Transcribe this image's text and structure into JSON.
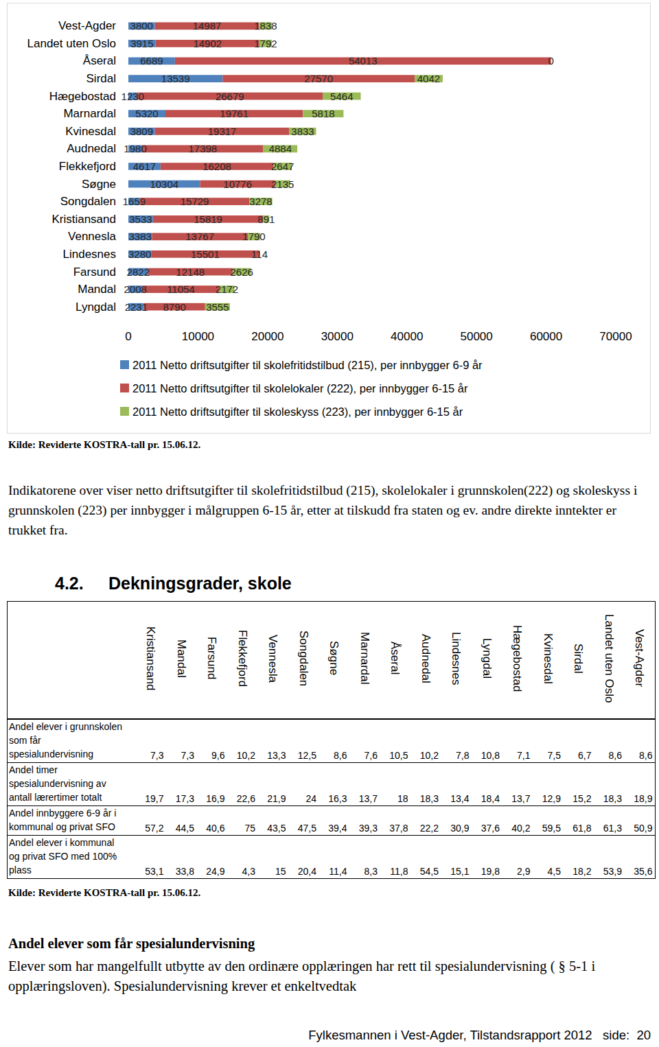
{
  "chart_data": {
    "type": "bar",
    "orientation": "horizontal",
    "stacked": true,
    "data_labels": true,
    "grid": false,
    "legend": "bottom",
    "categories": [
      "Vest-Agder",
      "Landet uten Oslo",
      "Åseral",
      "Sirdal",
      "Hægebostad",
      "Marnardal",
      "Kvinesdal",
      "Audnedal",
      "Flekkefjord",
      "Søgne",
      "Songdalen",
      "Kristiansand",
      "Vennesla",
      "Lindesnes",
      "Farsund",
      "Mandal",
      "Lyngdal"
    ],
    "series": [
      {
        "name": "2011 Netto driftsutgifter til skolefritidstilbud (215), per innbygger 6-9 år",
        "color": "#4f81bd",
        "values": [
          3800,
          3915,
          6689,
          13539,
          1230,
          5320,
          3809,
          1980,
          4617,
          10304,
          1659,
          3533,
          3383,
          3280,
          2822,
          2008,
          2231
        ]
      },
      {
        "name": "2011 Netto driftsutgifter til skolelokaler (222), per innbygger 6-15 år",
        "color": "#c0504d",
        "values": [
          14987,
          14902,
          54013,
          27570,
          26679,
          19761,
          19317,
          17398,
          16208,
          10776,
          15729,
          15819,
          13767,
          15501,
          12148,
          11054,
          8790
        ]
      },
      {
        "name": "2011 Netto driftsutgifter til skoleskyss (223), per innbygger 6-15 år",
        "color": "#9bbb59",
        "values": [
          1838,
          1792,
          0,
          4042,
          5464,
          5818,
          3833,
          4884,
          2647,
          2135,
          3278,
          891,
          1790,
          114,
          2626,
          2172,
          3555
        ]
      }
    ],
    "xlim": [
      0,
      70000
    ],
    "xticks": [
      0,
      10000,
      20000,
      30000,
      40000,
      50000,
      60000,
      70000
    ]
  },
  "chart_source": "Kilde: Reviderte KOSTRA-tall pr. 15.06.12.",
  "intro_paragraph": "Indikatorene over viser netto driftsutgifter til skolefritidstilbud (215), skolelokaler i grunnskolen(222) og skoleskyss i grunnskolen (223) per innbygger i målgruppen 6-15 år, etter at tilskudd fra staten og ev. andre direkte inntekter er trukket fra.",
  "section_number": "4.2.",
  "section_title": "Dekningsgrader, skole",
  "table": {
    "columns": [
      "Kristiansand",
      "Mandal",
      "Farsund",
      "Flekkefjord",
      "Vennesla",
      "Songdalen",
      "Søgne",
      "Marnardal",
      "Åseral",
      "Audnedal",
      "Lindesnes",
      "Lyngdal",
      "Hægebostad",
      "Kvinesdal",
      "Sirdal",
      "Landet uten Oslo",
      "Vest-Agder"
    ],
    "rows": [
      {
        "label_lines": [
          "Andel elever i grunnskolen",
          "som får",
          "spesialundervisning"
        ],
        "values": [
          "7,3",
          "7,3",
          "9,6",
          "10,2",
          "13,3",
          "12,5",
          "8,6",
          "7,6",
          "10,5",
          "10,2",
          "7,8",
          "10,8",
          "7,1",
          "7,5",
          "6,7",
          "8,6",
          "8,6"
        ]
      },
      {
        "label_lines": [
          "Andel timer",
          "spesialundervisning av",
          "antall lærertimer totalt"
        ],
        "values": [
          "19,7",
          "17,3",
          "16,9",
          "22,6",
          "21,9",
          "24",
          "16,3",
          "13,7",
          "18",
          "18,3",
          "13,4",
          "18,4",
          "13,7",
          "12,9",
          "15,2",
          "18,3",
          "18,9"
        ]
      },
      {
        "label_lines": [
          "Andel innbyggere 6-9 år i",
          "kommunal og privat SFO"
        ],
        "values": [
          "57,2",
          "44,5",
          "40,6",
          "75",
          "43,5",
          "47,5",
          "39,4",
          "39,3",
          "37,8",
          "22,2",
          "30,9",
          "37,6",
          "40,2",
          "59,5",
          "61,8",
          "61,3",
          "50,9"
        ]
      },
      {
        "label_lines": [
          "Andel elever i kommunal",
          "og privat SFO med 100%",
          "plass"
        ],
        "values": [
          "53,1",
          "33,8",
          "24,9",
          "4,3",
          "15",
          "20,4",
          "11,4",
          "8,3",
          "11,8",
          "54,5",
          "15,1",
          "19,8",
          "2,9",
          "4,5",
          "18,2",
          "53,9",
          "35,6"
        ]
      }
    ]
  },
  "table_source": "Kilde: Reviderte KOSTRA-tall pr. 15.06.12.",
  "subheading": "Andel elever som får spesialundervisning",
  "body_text": "Elever som har mangelfullt utbytte av den ordinære opplæringen har rett til spesialundervisning ( § 5-1 i opplæringsloven). Spesialundervisning krever et enkeltvedtak",
  "footer": "Fylkesmannen i Vest-Agder, Tilstandsrapport 2012   side:  20"
}
